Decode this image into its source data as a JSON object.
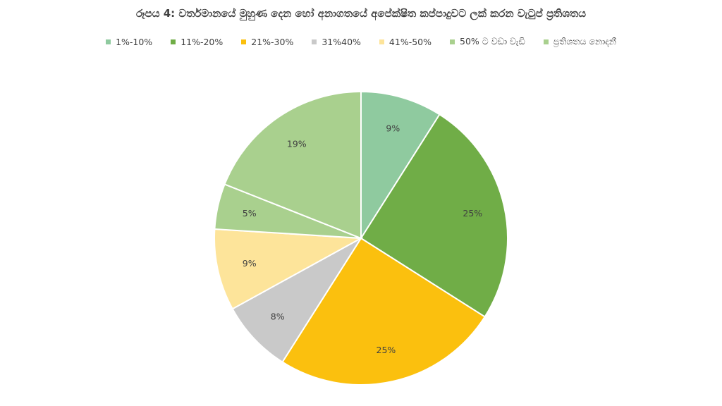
{
  "chart_data": {
    "type": "pie",
    "title": "රූපය 4: වර්තමානයේ මුහුණ දෙන හෝ අනාගතයේ අපේක්ෂිත කප්පාදුවට ලක් කරන වැටුප් ප්‍රතිශතය",
    "legend_position": "top",
    "categories": [
      "1%-10%",
      "11%-20%",
      "21%-30%",
      "31%40%",
      "41%-50%",
      "50% ට වඩා වැඩි",
      "ප්‍රතිශතය නොදනී"
    ],
    "values": [
      9,
      25,
      25,
      8,
      9,
      5,
      19
    ],
    "value_labels": [
      "9%",
      "25%",
      "25%",
      "8%",
      "9%",
      "5%",
      "19%"
    ],
    "colors": [
      "#8FCA9F",
      "#70AD47",
      "#FBC00E",
      "#C9C9C9",
      "#FDE49A",
      "#A9D08E",
      "#A9D08E"
    ]
  }
}
